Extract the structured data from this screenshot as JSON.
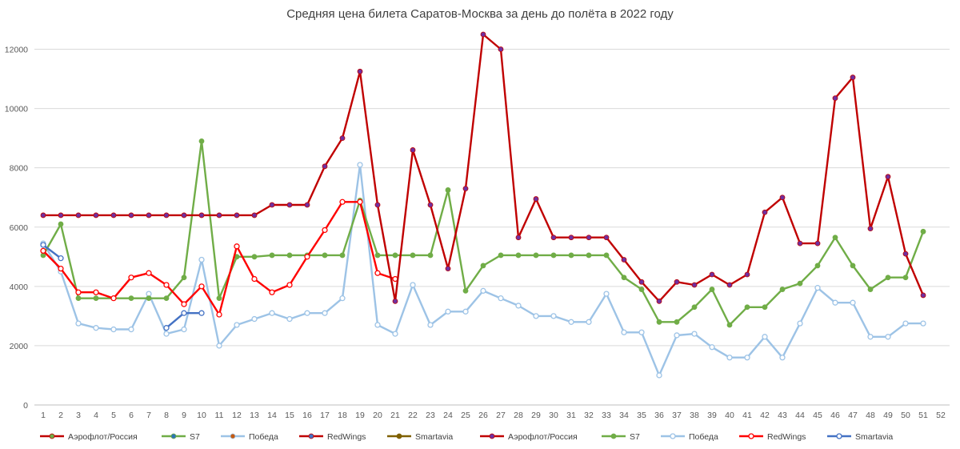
{
  "chart_data": {
    "type": "line",
    "title": "Средняя цена билета Саратов-Москва за день до полёта в 2022 году",
    "xlabel": "",
    "ylabel": "",
    "ylim": [
      0,
      12500
    ],
    "yticks": [
      0,
      2000,
      4000,
      6000,
      8000,
      10000,
      12000
    ],
    "x": [
      1,
      2,
      3,
      4,
      5,
      6,
      7,
      8,
      9,
      10,
      11,
      12,
      13,
      14,
      15,
      16,
      17,
      18,
      19,
      20,
      21,
      22,
      23,
      24,
      25,
      26,
      27,
      28,
      29,
      30,
      31,
      32,
      33,
      34,
      35,
      36,
      37,
      38,
      39,
      40,
      41,
      42,
      43,
      44,
      45,
      46,
      47,
      48,
      49,
      50,
      51,
      52
    ],
    "grid": true,
    "legend_position": "bottom",
    "legend_entries": [
      {
        "name": "Аэрофлот/Россия",
        "color": "#c00000",
        "marker": "#70ad47",
        "hollow": false
      },
      {
        "name": "S7",
        "color": "#70ad47",
        "marker": "#2e75b6",
        "hollow": false
      },
      {
        "name": "Победа",
        "color": "#9dc3e6",
        "marker": "#c55a11",
        "hollow": false
      },
      {
        "name": "RedWings",
        "color": "#c00000",
        "marker": "#4472c4",
        "hollow": false
      },
      {
        "name": "Smartavia",
        "color": "#7f6000",
        "marker": "#7f6000",
        "hollow": false
      },
      {
        "name": "Аэрофлот/Россия",
        "color": "#c00000",
        "marker": "#7030a0",
        "hollow": false
      },
      {
        "name": "S7",
        "color": "#70ad47",
        "marker": "#70ad47",
        "hollow": false
      },
      {
        "name": "Победа",
        "color": "#9dc3e6",
        "marker": "#9dc3e6",
        "hollow": true
      },
      {
        "name": "RedWings",
        "color": "#ff0000",
        "marker": "#ff0000",
        "hollow": true
      },
      {
        "name": "Smartavia",
        "color": "#4472c4",
        "marker": "#4472c4",
        "hollow": true
      }
    ],
    "series": [
      {
        "name": "Победа",
        "color": "#9dc3e6",
        "marker": "#9dc3e6",
        "hollow": true,
        "values": [
          5450,
          4500,
          2750,
          2600,
          2550,
          2550,
          3750,
          2400,
          2550,
          4900,
          2000,
          2700,
          2900,
          3100,
          2900,
          3100,
          3100,
          3600,
          8100,
          2700,
          2400,
          4050,
          2700,
          3150,
          3150,
          3850,
          3600,
          3350,
          3000,
          3000,
          2800,
          2800,
          3750,
          2450,
          2450,
          1000,
          2350,
          2400,
          1950,
          1600,
          1600,
          2300,
          1600,
          2750,
          3950,
          3450,
          3450,
          2300,
          2300,
          2750,
          2750,
          null
        ]
      },
      {
        "name": "S7",
        "color": "#70ad47",
        "marker": "#70ad47",
        "hollow": false,
        "values": [
          5050,
          6100,
          3600,
          3600,
          3600,
          3600,
          3600,
          3600,
          4300,
          8900,
          3600,
          5000,
          5000,
          5050,
          5050,
          5050,
          5050,
          5050,
          6900,
          5050,
          5050,
          5050,
          5050,
          7250,
          3850,
          4700,
          5050,
          5050,
          5050,
          5050,
          5050,
          5050,
          5050,
          4300,
          3900,
          2800,
          2800,
          3300,
          3900,
          2700,
          3300,
          3300,
          3900,
          4100,
          4700,
          5650,
          4700,
          3900,
          4300,
          4300,
          5850,
          null
        ]
      },
      {
        "name": "RedWings",
        "color": "#ff0000",
        "marker": "#ff0000",
        "hollow": true,
        "values": [
          5200,
          4600,
          3800,
          3800,
          3600,
          4300,
          4450,
          4050,
          3400,
          4000,
          3050,
          5350,
          4250,
          3800,
          4050,
          5000,
          5900,
          6850,
          6850,
          4450,
          4250,
          null,
          null,
          null,
          null,
          null,
          null,
          null,
          null,
          null,
          null,
          null,
          null,
          null,
          null,
          null,
          null,
          null,
          null,
          null,
          null,
          null,
          null,
          null,
          null,
          null,
          null,
          null,
          null,
          null,
          null,
          null
        ]
      },
      {
        "name": "Аэрофлот/Россия",
        "color": "#c00000",
        "marker": "#7030a0",
        "hollow": false,
        "values": [
          6400,
          6400,
          6400,
          6400,
          6400,
          6400,
          6400,
          6400,
          6400,
          6400,
          6400,
          6400,
          6400,
          6750,
          6750,
          6750,
          8050,
          9000,
          11250,
          6750,
          3500,
          8600,
          6750,
          4600,
          7300,
          12500,
          12000,
          5650,
          6950,
          5650,
          5650,
          5650,
          5650,
          4900,
          4150,
          3500,
          4150,
          4050,
          4400,
          4050,
          4400,
          6500,
          7000,
          5450,
          5450,
          10350,
          11050,
          5950,
          7700,
          5100,
          3700,
          null
        ]
      },
      {
        "name": "Smartavia",
        "color": "#4472c4",
        "marker": "#4472c4",
        "hollow": true,
        "values": [
          5400,
          4950,
          null,
          null,
          null,
          null,
          null,
          2600,
          3100,
          3100,
          null,
          null,
          null,
          null,
          null,
          null,
          null,
          null,
          null,
          null,
          null,
          null,
          null,
          null,
          null,
          null,
          null,
          null,
          null,
          null,
          null,
          null,
          null,
          null,
          null,
          null,
          null,
          null,
          null,
          null,
          null,
          null,
          null,
          null,
          null,
          null,
          null,
          null,
          null,
          null,
          null,
          null
        ]
      }
    ]
  }
}
